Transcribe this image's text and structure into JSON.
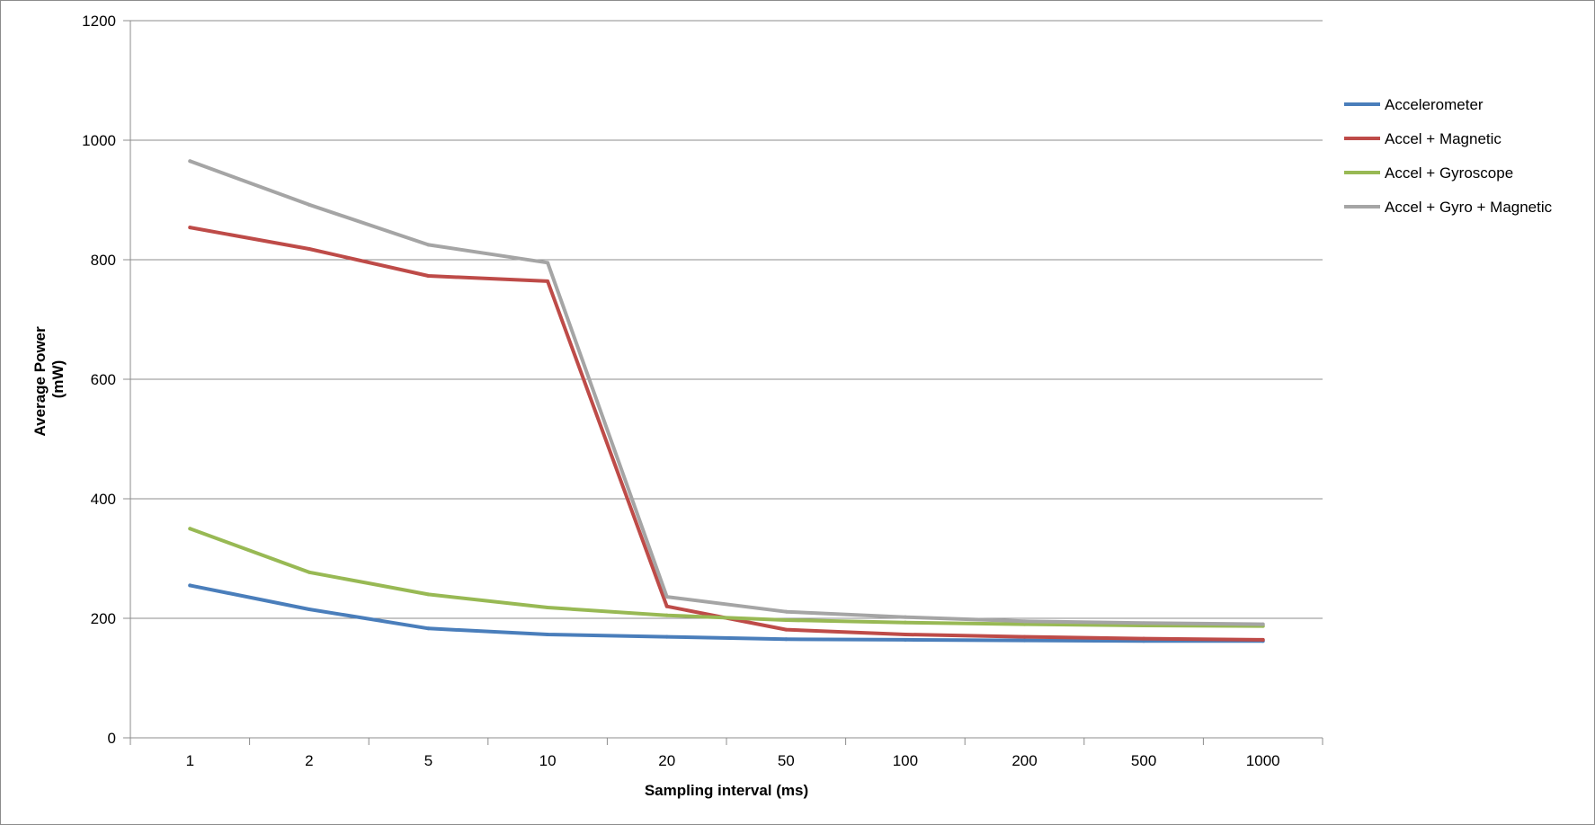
{
  "chart_data": {
    "type": "line",
    "title": "",
    "xlabel": "Sampling interval (ms)",
    "ylabel_lines": [
      "Average Power",
      "(mW)"
    ],
    "categories": [
      "1",
      "2",
      "5",
      "10",
      "20",
      "50",
      "100",
      "200",
      "500",
      "1000"
    ],
    "ylim": [
      0,
      1200
    ],
    "yticks": [
      0,
      200,
      400,
      600,
      800,
      1000,
      1200
    ],
    "ytick_labels": [
      "0",
      "200",
      "400",
      "600",
      "800",
      "1000",
      "1200"
    ],
    "grid": true,
    "legend_position": "right",
    "series": [
      {
        "name": "Accelerometer",
        "color": "#4a7ebb",
        "values": [
          255,
          215,
          183,
          173,
          169,
          165,
          164,
          163,
          162,
          162
        ]
      },
      {
        "name": "Accel + Magnetic",
        "color": "#be4b48",
        "values": [
          854,
          818,
          773,
          764,
          220,
          181,
          173,
          169,
          166,
          164
        ]
      },
      {
        "name": "Accel + Gyroscope",
        "color": "#98b954",
        "values": [
          350,
          277,
          240,
          218,
          205,
          197,
          193,
          190,
          188,
          187
        ]
      },
      {
        "name": "Accel + Gyro + Magnetic",
        "color": "#a5a5a5",
        "values": [
          965,
          892,
          825,
          795,
          236,
          211,
          202,
          195,
          192,
          190
        ]
      }
    ]
  }
}
